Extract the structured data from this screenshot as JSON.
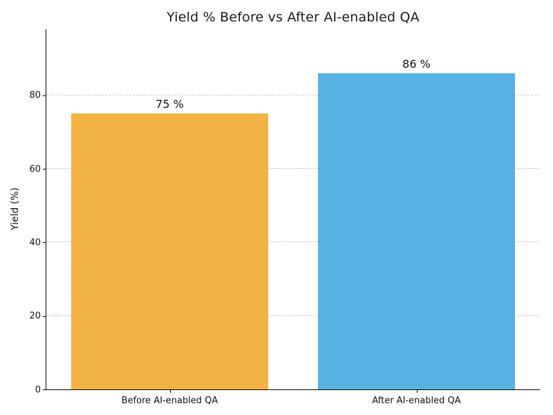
{
  "chart_data": {
    "type": "bar",
    "title": "Yield % Before vs After AI-enabled QA",
    "xlabel": "",
    "ylabel": "Yield (%)",
    "categories": [
      "Before AI-enabled QA",
      "After AI-enabled QA"
    ],
    "values": [
      75,
      86
    ],
    "value_labels": [
      "75 %",
      "86 %"
    ],
    "bar_colors": [
      "#F2B344",
      "#57B2E2"
    ],
    "bar_width_fraction": 0.8,
    "yticks": [
      0,
      20,
      40,
      60,
      80
    ],
    "ylim": [
      0,
      98
    ],
    "grid": "horizontal-dashed",
    "grid_color": "#c9c9c9",
    "legend": "none",
    "background": "#ffffff",
    "spine_color": "#000000"
  }
}
